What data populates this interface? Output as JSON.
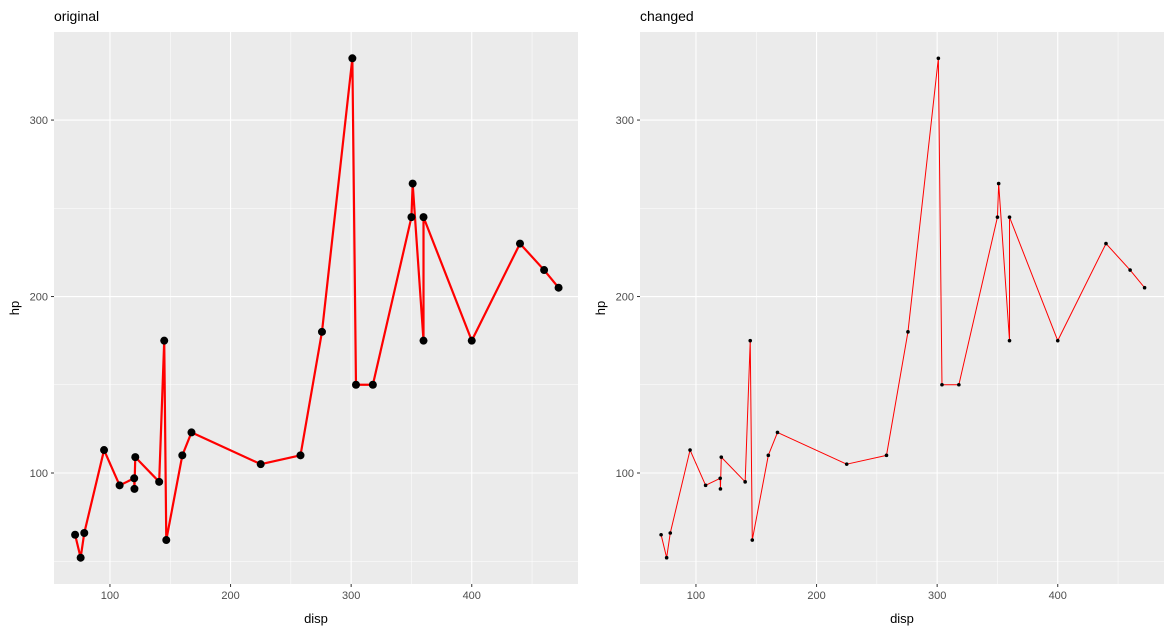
{
  "chart_data": [
    {
      "type": "line",
      "title": "original",
      "xlabel": "disp",
      "ylabel": "hp",
      "xlim": [
        53.6,
        488.1
      ],
      "ylim": [
        37.1,
        349.9
      ],
      "x_ticks": [
        100,
        200,
        300,
        400
      ],
      "y_ticks": [
        100,
        200,
        300
      ],
      "x_tick_labels": [
        "100",
        "200",
        "300",
        "400"
      ],
      "y_tick_labels": [
        "100",
        "200",
        "300"
      ],
      "grid": true,
      "style": {
        "line_color": "#ff0000",
        "line_width": 2.2,
        "point_color": "#000000",
        "point_radius": 4
      },
      "series": [
        {
          "points": [
            [
              71.1,
              65
            ],
            [
              75.7,
              52
            ],
            [
              78.7,
              66
            ],
            [
              95.1,
              113
            ],
            [
              108,
              93
            ],
            [
              120.1,
              97
            ],
            [
              120.3,
              91
            ],
            [
              121,
              109
            ],
            [
              140.8,
              95
            ],
            [
              145,
              175
            ],
            [
              146.7,
              62
            ],
            [
              160,
              110
            ],
            [
              167.6,
              123
            ],
            [
              225,
              105
            ],
            [
              258,
              110
            ],
            [
              275.8,
              180
            ],
            [
              301,
              335
            ],
            [
              304,
              150
            ],
            [
              318,
              150
            ],
            [
              350,
              245
            ],
            [
              351,
              264
            ],
            [
              360,
              175
            ],
            [
              360,
              245
            ],
            [
              400,
              175
            ],
            [
              440,
              230
            ],
            [
              460,
              215
            ],
            [
              472,
              205
            ]
          ]
        }
      ]
    },
    {
      "type": "line",
      "title": "changed",
      "xlabel": "disp",
      "ylabel": "hp",
      "xlim": [
        53.6,
        488.1
      ],
      "ylim": [
        37.1,
        349.9
      ],
      "x_ticks": [
        100,
        200,
        300,
        400
      ],
      "y_ticks": [
        100,
        200,
        300
      ],
      "x_tick_labels": [
        "100",
        "200",
        "300",
        "400"
      ],
      "y_tick_labels": [
        "100",
        "200",
        "300"
      ],
      "grid": true,
      "style": {
        "line_color": "#ff0000",
        "line_width": 1,
        "point_color": "#000000",
        "point_radius": 1.8
      },
      "series": [
        {
          "points": [
            [
              71.1,
              65
            ],
            [
              75.7,
              52
            ],
            [
              78.7,
              66
            ],
            [
              95.1,
              113
            ],
            [
              108,
              93
            ],
            [
              120.1,
              97
            ],
            [
              120.3,
              91
            ],
            [
              121,
              109
            ],
            [
              140.8,
              95
            ],
            [
              145,
              175
            ],
            [
              146.7,
              62
            ],
            [
              160,
              110
            ],
            [
              167.6,
              123
            ],
            [
              225,
              105
            ],
            [
              258,
              110
            ],
            [
              275.8,
              180
            ],
            [
              301,
              335
            ],
            [
              304,
              150
            ],
            [
              318,
              150
            ],
            [
              350,
              245
            ],
            [
              351,
              264
            ],
            [
              360,
              175
            ],
            [
              360,
              245
            ],
            [
              400,
              175
            ],
            [
              440,
              230
            ],
            [
              460,
              215
            ],
            [
              472,
              205
            ]
          ]
        }
      ]
    }
  ]
}
